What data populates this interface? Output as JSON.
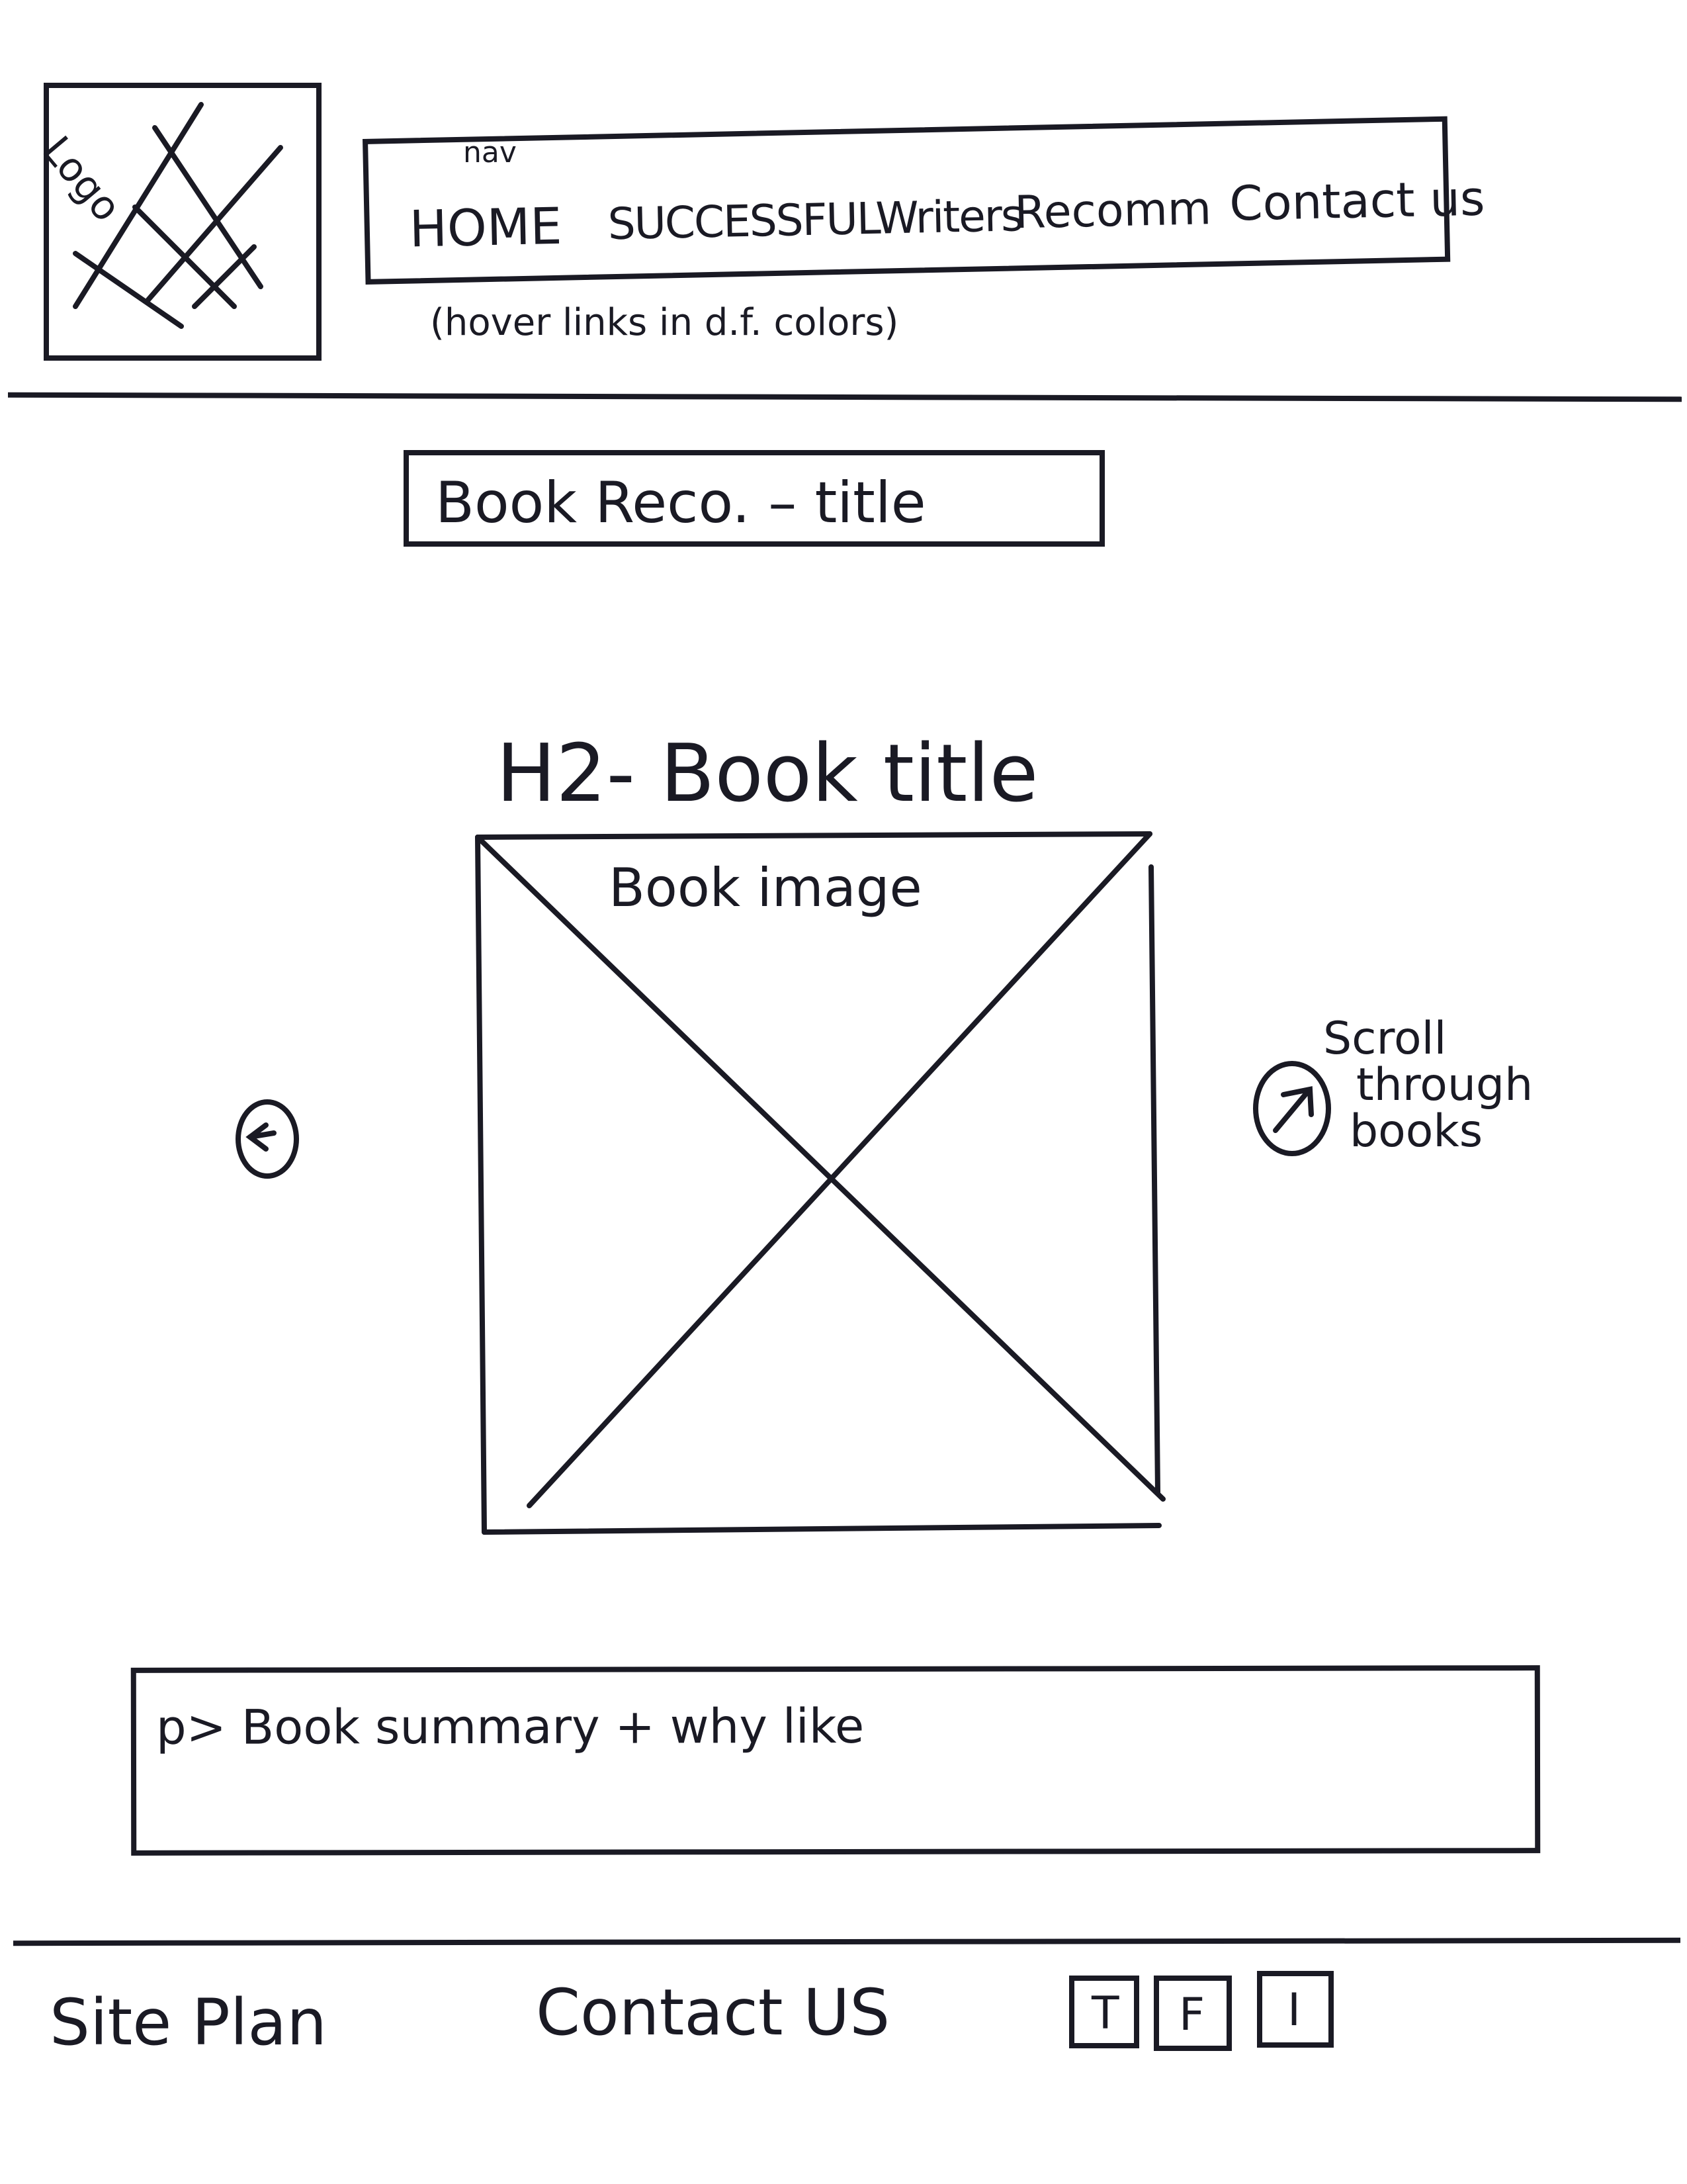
{
  "header": {
    "logo_label": "Logo",
    "nav_label": "nav",
    "nav_items": [
      "HOME",
      "SUCCESSFULWriters",
      "Recomm",
      "Contact us"
    ],
    "nav_note": "(hover links in d.f. colors)"
  },
  "main": {
    "page_title": "Book Reco. – title",
    "book_heading": "H2- Book title",
    "book_image_label": "Book image",
    "scroll_note_lines": [
      "Scroll",
      "through",
      "books"
    ],
    "summary_label": "p> Book summary + why like"
  },
  "footer": {
    "site_plan": "Site Plan",
    "contact": "Contact US",
    "social": [
      "T",
      "F",
      "I"
    ]
  },
  "icons": {
    "prev": "arrow-left-circle-icon",
    "next": "arrow-right-circle-icon"
  }
}
